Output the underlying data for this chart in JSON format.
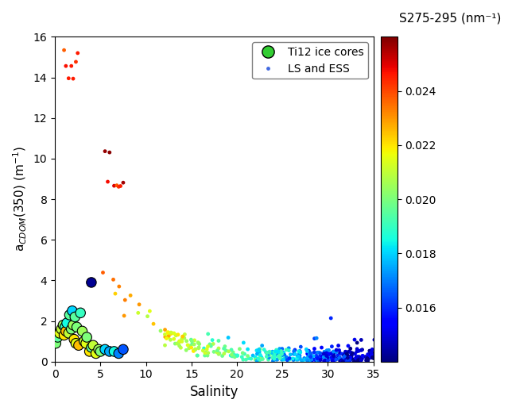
{
  "xlabel": "Salinity",
  "ylabel": "a$_{CDOM}$(350) (m$^{-1}$)",
  "cbar_label": "S275-295 (nm⁻¹)",
  "xlim": [
    0,
    35
  ],
  "ylim": [
    0,
    16
  ],
  "xticks": [
    0,
    5,
    10,
    15,
    20,
    25,
    30,
    35
  ],
  "yticks": [
    0,
    2,
    4,
    6,
    8,
    10,
    12,
    14,
    16
  ],
  "cmap": "jet",
  "cbar_vmin": 0.014,
  "cbar_vmax": 0.026,
  "cbar_ticks": [
    0.016,
    0.018,
    0.02,
    0.022,
    0.024
  ],
  "legend_labels": [
    "Ti12 ice cores",
    "LS and ESS"
  ],
  "ice_core_markersize": 80,
  "water_markersize": 12,
  "background_color": "white",
  "figsize": [
    6.44,
    5.18
  ],
  "dpi": 100
}
